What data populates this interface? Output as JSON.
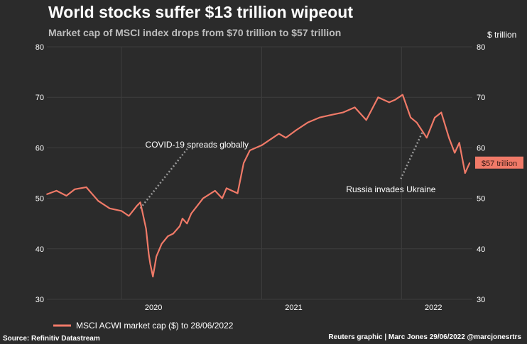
{
  "header": {
    "title": "World stocks suffer $13 trillion wipeout",
    "subtitle": "Market cap of MSCI index drops from $70 trillion to $57 trillion",
    "unit": "$ trillion"
  },
  "footer": {
    "source": "Source: Refinitiv Datastream",
    "credit": "Reuters graphic | Marc Jones 29/06/2022 @marcjonesrtrs"
  },
  "chart_data": {
    "type": "line",
    "title": "World stocks suffer $13 trillion wipeout",
    "subtitle": "Market cap of MSCI index drops from $70 trillion to $57 trillion",
    "ylabel": "$ trillion",
    "ylim": [
      30,
      80
    ],
    "yticks": [
      30,
      40,
      50,
      60,
      70,
      80
    ],
    "xlim": [
      "2019-06-20",
      "2022-07-05"
    ],
    "xticks": [
      {
        "date": "2020-01-01",
        "label": "2020"
      },
      {
        "date": "2021-01-01",
        "label": "2021"
      },
      {
        "date": "2022-01-01",
        "label": "2022"
      }
    ],
    "grid": true,
    "legend_position": "bottom-left",
    "colors": {
      "line": "#f07a68",
      "background": "#2b2b2b",
      "grid": "#3e3e3e",
      "annotation_line": "#9a9a9a"
    },
    "series": [
      {
        "name": "MSCI ACWI market cap ($) to 28/06/2022",
        "x": [
          "2019-06-20",
          "2019-07-15",
          "2019-08-10",
          "2019-09-01",
          "2019-10-01",
          "2019-11-01",
          "2019-12-01",
          "2020-01-01",
          "2020-01-20",
          "2020-02-10",
          "2020-02-19",
          "2020-03-05",
          "2020-03-12",
          "2020-03-16",
          "2020-03-23",
          "2020-04-01",
          "2020-04-15",
          "2020-05-01",
          "2020-05-15",
          "2020-06-01",
          "2020-06-08",
          "2020-06-20",
          "2020-07-01",
          "2020-08-01",
          "2020-09-01",
          "2020-09-20",
          "2020-10-01",
          "2020-10-30",
          "2020-11-15",
          "2020-12-01",
          "2021-01-01",
          "2021-02-15",
          "2021-03-05",
          "2021-04-01",
          "2021-05-01",
          "2021-06-01",
          "2021-07-01",
          "2021-08-01",
          "2021-09-01",
          "2021-10-01",
          "2021-11-01",
          "2021-11-30",
          "2021-12-15",
          "2022-01-04",
          "2022-01-25",
          "2022-02-10",
          "2022-03-08",
          "2022-03-29",
          "2022-04-15",
          "2022-05-05",
          "2022-05-20",
          "2022-06-01",
          "2022-06-16",
          "2022-06-28"
        ],
        "values": [
          50.8,
          51.5,
          50.5,
          51.8,
          52.2,
          49.5,
          48.0,
          47.5,
          46.5,
          48.5,
          49.2,
          44.0,
          39.0,
          37.0,
          34.5,
          38.5,
          41.0,
          42.5,
          43.0,
          44.5,
          46.0,
          45.0,
          47.0,
          50.0,
          51.5,
          50.0,
          52.0,
          51.0,
          57.0,
          59.5,
          60.5,
          62.8,
          62.0,
          63.5,
          65.0,
          66.0,
          66.5,
          67.0,
          68.0,
          65.5,
          70.0,
          69.0,
          69.5,
          70.5,
          66.0,
          65.0,
          62.0,
          66.0,
          67.0,
          62.0,
          59.0,
          61.0,
          55.0,
          57.0
        ]
      }
    ],
    "annotations": [
      {
        "text": "COVID-19 spreads globally",
        "date": "2020-02-19",
        "value": 48.0
      },
      {
        "text": "Russia invades Ukraine",
        "date": "2022-02-24",
        "value": 63.0
      }
    ],
    "end_label": "$57 trillion"
  }
}
